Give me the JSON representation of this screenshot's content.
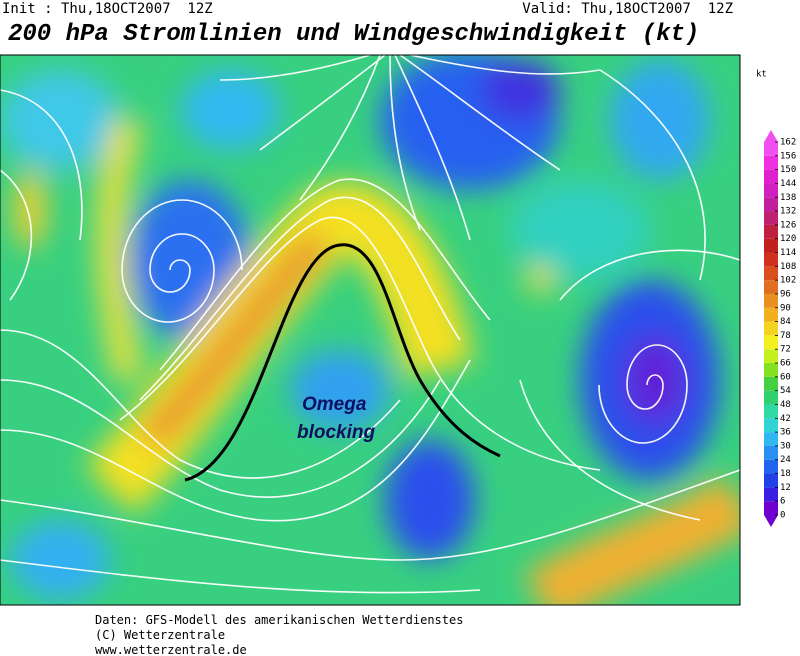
{
  "header": {
    "init": "Init : Thu,18OCT2007  12Z",
    "valid": "Valid: Thu,18OCT2007  12Z",
    "title": "200 hPa Stromlinien und Windgeschwindigkeit (kt)"
  },
  "annotation": {
    "lines": [
      "Omega",
      "blocking"
    ]
  },
  "legend": {
    "unit": "kt",
    "ticks": [
      0,
      6,
      12,
      18,
      24,
      30,
      36,
      42,
      48,
      54,
      60,
      66,
      72,
      78,
      84,
      90,
      96,
      102,
      108,
      114,
      120,
      126,
      132,
      138,
      144,
      150,
      156,
      162
    ],
    "colors": [
      "#7000d0",
      "#3a20e0",
      "#2040e8",
      "#2064f0",
      "#2890f0",
      "#30b8f0",
      "#30d4d4",
      "#30d8a4",
      "#30d070",
      "#44d040",
      "#84e020",
      "#c4f020",
      "#f4f020",
      "#f4d420",
      "#f0b020",
      "#e89020",
      "#e07020",
      "#d85020",
      "#d03020",
      "#c02020",
      "#c02040",
      "#c02070",
      "#c020a0",
      "#d020c0",
      "#e020d0",
      "#f030e0",
      "#f050f0"
    ]
  },
  "footer": {
    "lines": [
      "Daten: GFS-Modell des amerikanischen Wetterdienstes",
      "(C) Wetterzentrale",
      "www.wetterzentrale.de"
    ]
  }
}
